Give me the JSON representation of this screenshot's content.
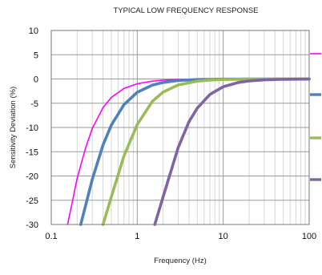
{
  "chart_data": {
    "type": "line",
    "title": "TYPICAL LOW FREQUENCY RESPONSE",
    "xlabel": "Frequency (Hz)",
    "ylabel": "Sensitivity Deviation (%)",
    "xscale": "log",
    "xlim": [
      0.1,
      100
    ],
    "ylim": [
      -30,
      10
    ],
    "xticks": [
      "0.1",
      "1",
      "10",
      "100"
    ],
    "yticks": [
      "10",
      "5",
      "0",
      "-5",
      "-10",
      "-15",
      "-20",
      "-25",
      "-30"
    ],
    "grid": true,
    "legend": "right, unlabeled color swatches",
    "series": [
      {
        "color": "#ff00ff",
        "x": [
          0.155,
          0.2,
          0.25,
          0.3,
          0.4,
          0.5,
          0.7,
          1,
          1.5,
          2,
          3,
          5,
          10,
          100
        ],
        "y": [
          -30,
          -20.5,
          -14.3,
          -10.2,
          -5.9,
          -3.8,
          -1.95,
          -0.99,
          -0.44,
          -0.25,
          -0.11,
          -0.04,
          -0.01,
          0
        ]
      },
      {
        "color": "#4f81bd",
        "x": [
          0.22,
          0.3,
          0.4,
          0.5,
          0.7,
          1,
          1.5,
          2,
          3,
          5,
          10,
          100
        ],
        "y": [
          -30,
          -20.7,
          -13.6,
          -9.5,
          -5.3,
          -2.75,
          -1.26,
          -0.72,
          -0.32,
          -0.12,
          -0.03,
          0
        ]
      },
      {
        "color": "#9bbb59",
        "x": [
          0.4,
          0.5,
          0.7,
          1,
          1.5,
          2,
          3,
          5,
          7,
          10,
          20,
          100
        ],
        "y": [
          -30,
          -24.3,
          -15.9,
          -9.4,
          -4.6,
          -2.7,
          -1.23,
          -0.45,
          -0.23,
          -0.11,
          -0.03,
          0
        ]
      },
      {
        "color": "#8064a2",
        "x": [
          1.6,
          2,
          3,
          4,
          5,
          7,
          10,
          15,
          20,
          30,
          50,
          100
        ],
        "y": [
          -30,
          -24.3,
          -14.1,
          -8.8,
          -6.0,
          -3.2,
          -1.6,
          -0.72,
          -0.41,
          -0.18,
          -0.07,
          -0.02
        ]
      }
    ]
  }
}
